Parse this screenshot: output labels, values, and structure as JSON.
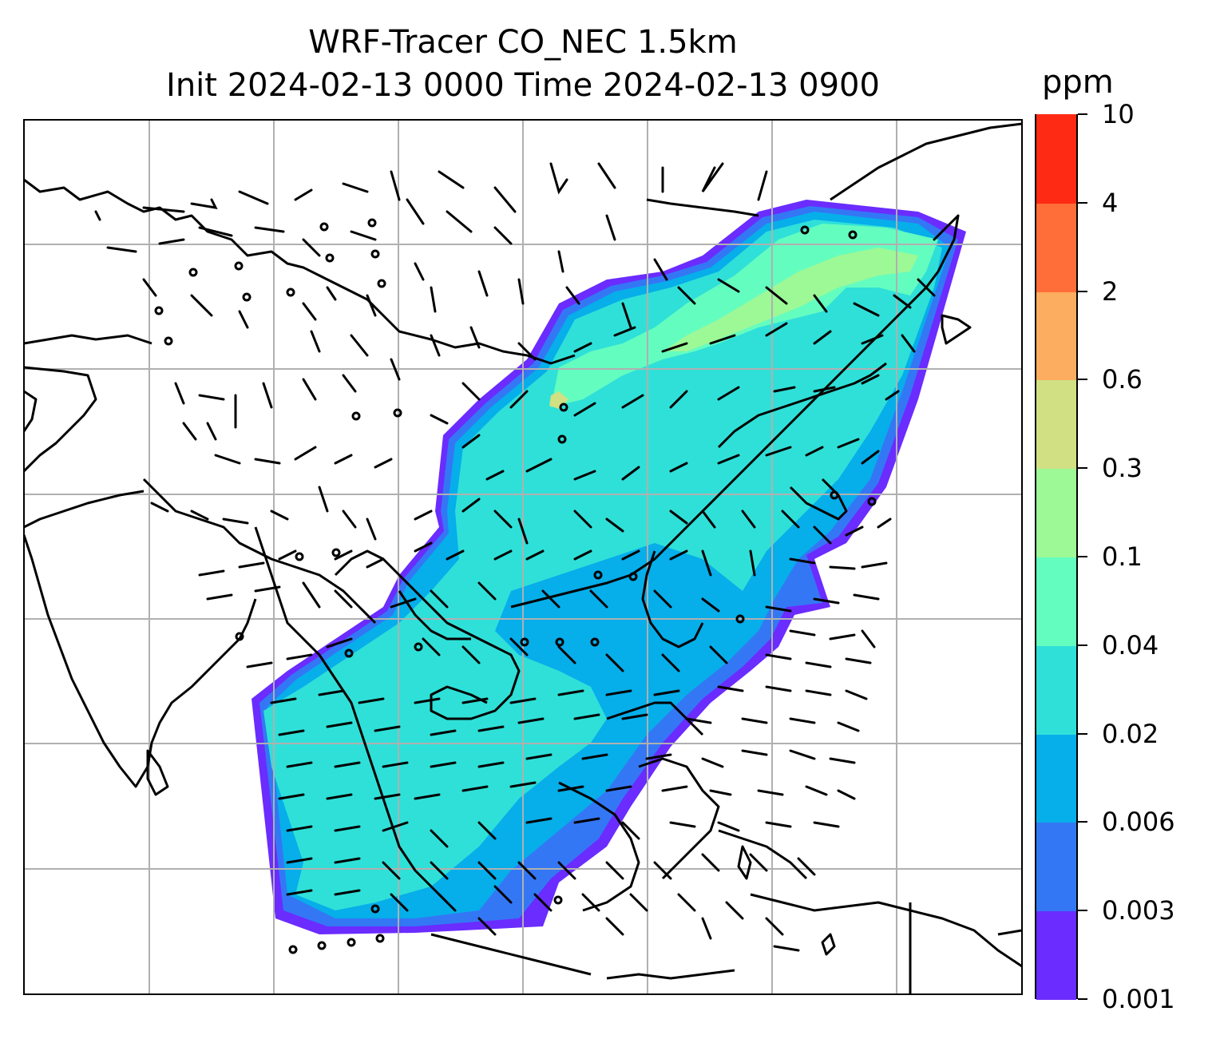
{
  "title_line1": "WRF-Tracer CO_NEC 1.5km",
  "title_line2": "Init 2024-02-13 0000 Time 2024-02-13 0900",
  "colorbar": {
    "unit": "ppm",
    "levels": [
      "0.001",
      "0.003",
      "0.006",
      "0.02",
      "0.04",
      "0.1",
      "0.3",
      "0.6",
      "2",
      "4",
      "10"
    ],
    "colors": [
      "#6a2cff",
      "#3477f5",
      "#06aeea",
      "#2fe0d8",
      "#64fdc0",
      "#9df896",
      "#d0e083",
      "#fdad5f",
      "#ff6d38",
      "#ff2a14"
    ]
  },
  "map": {
    "coastline_color": "#000000",
    "gridline_color": "#b0b0b0",
    "wind_barb_color": "#000000"
  }
}
